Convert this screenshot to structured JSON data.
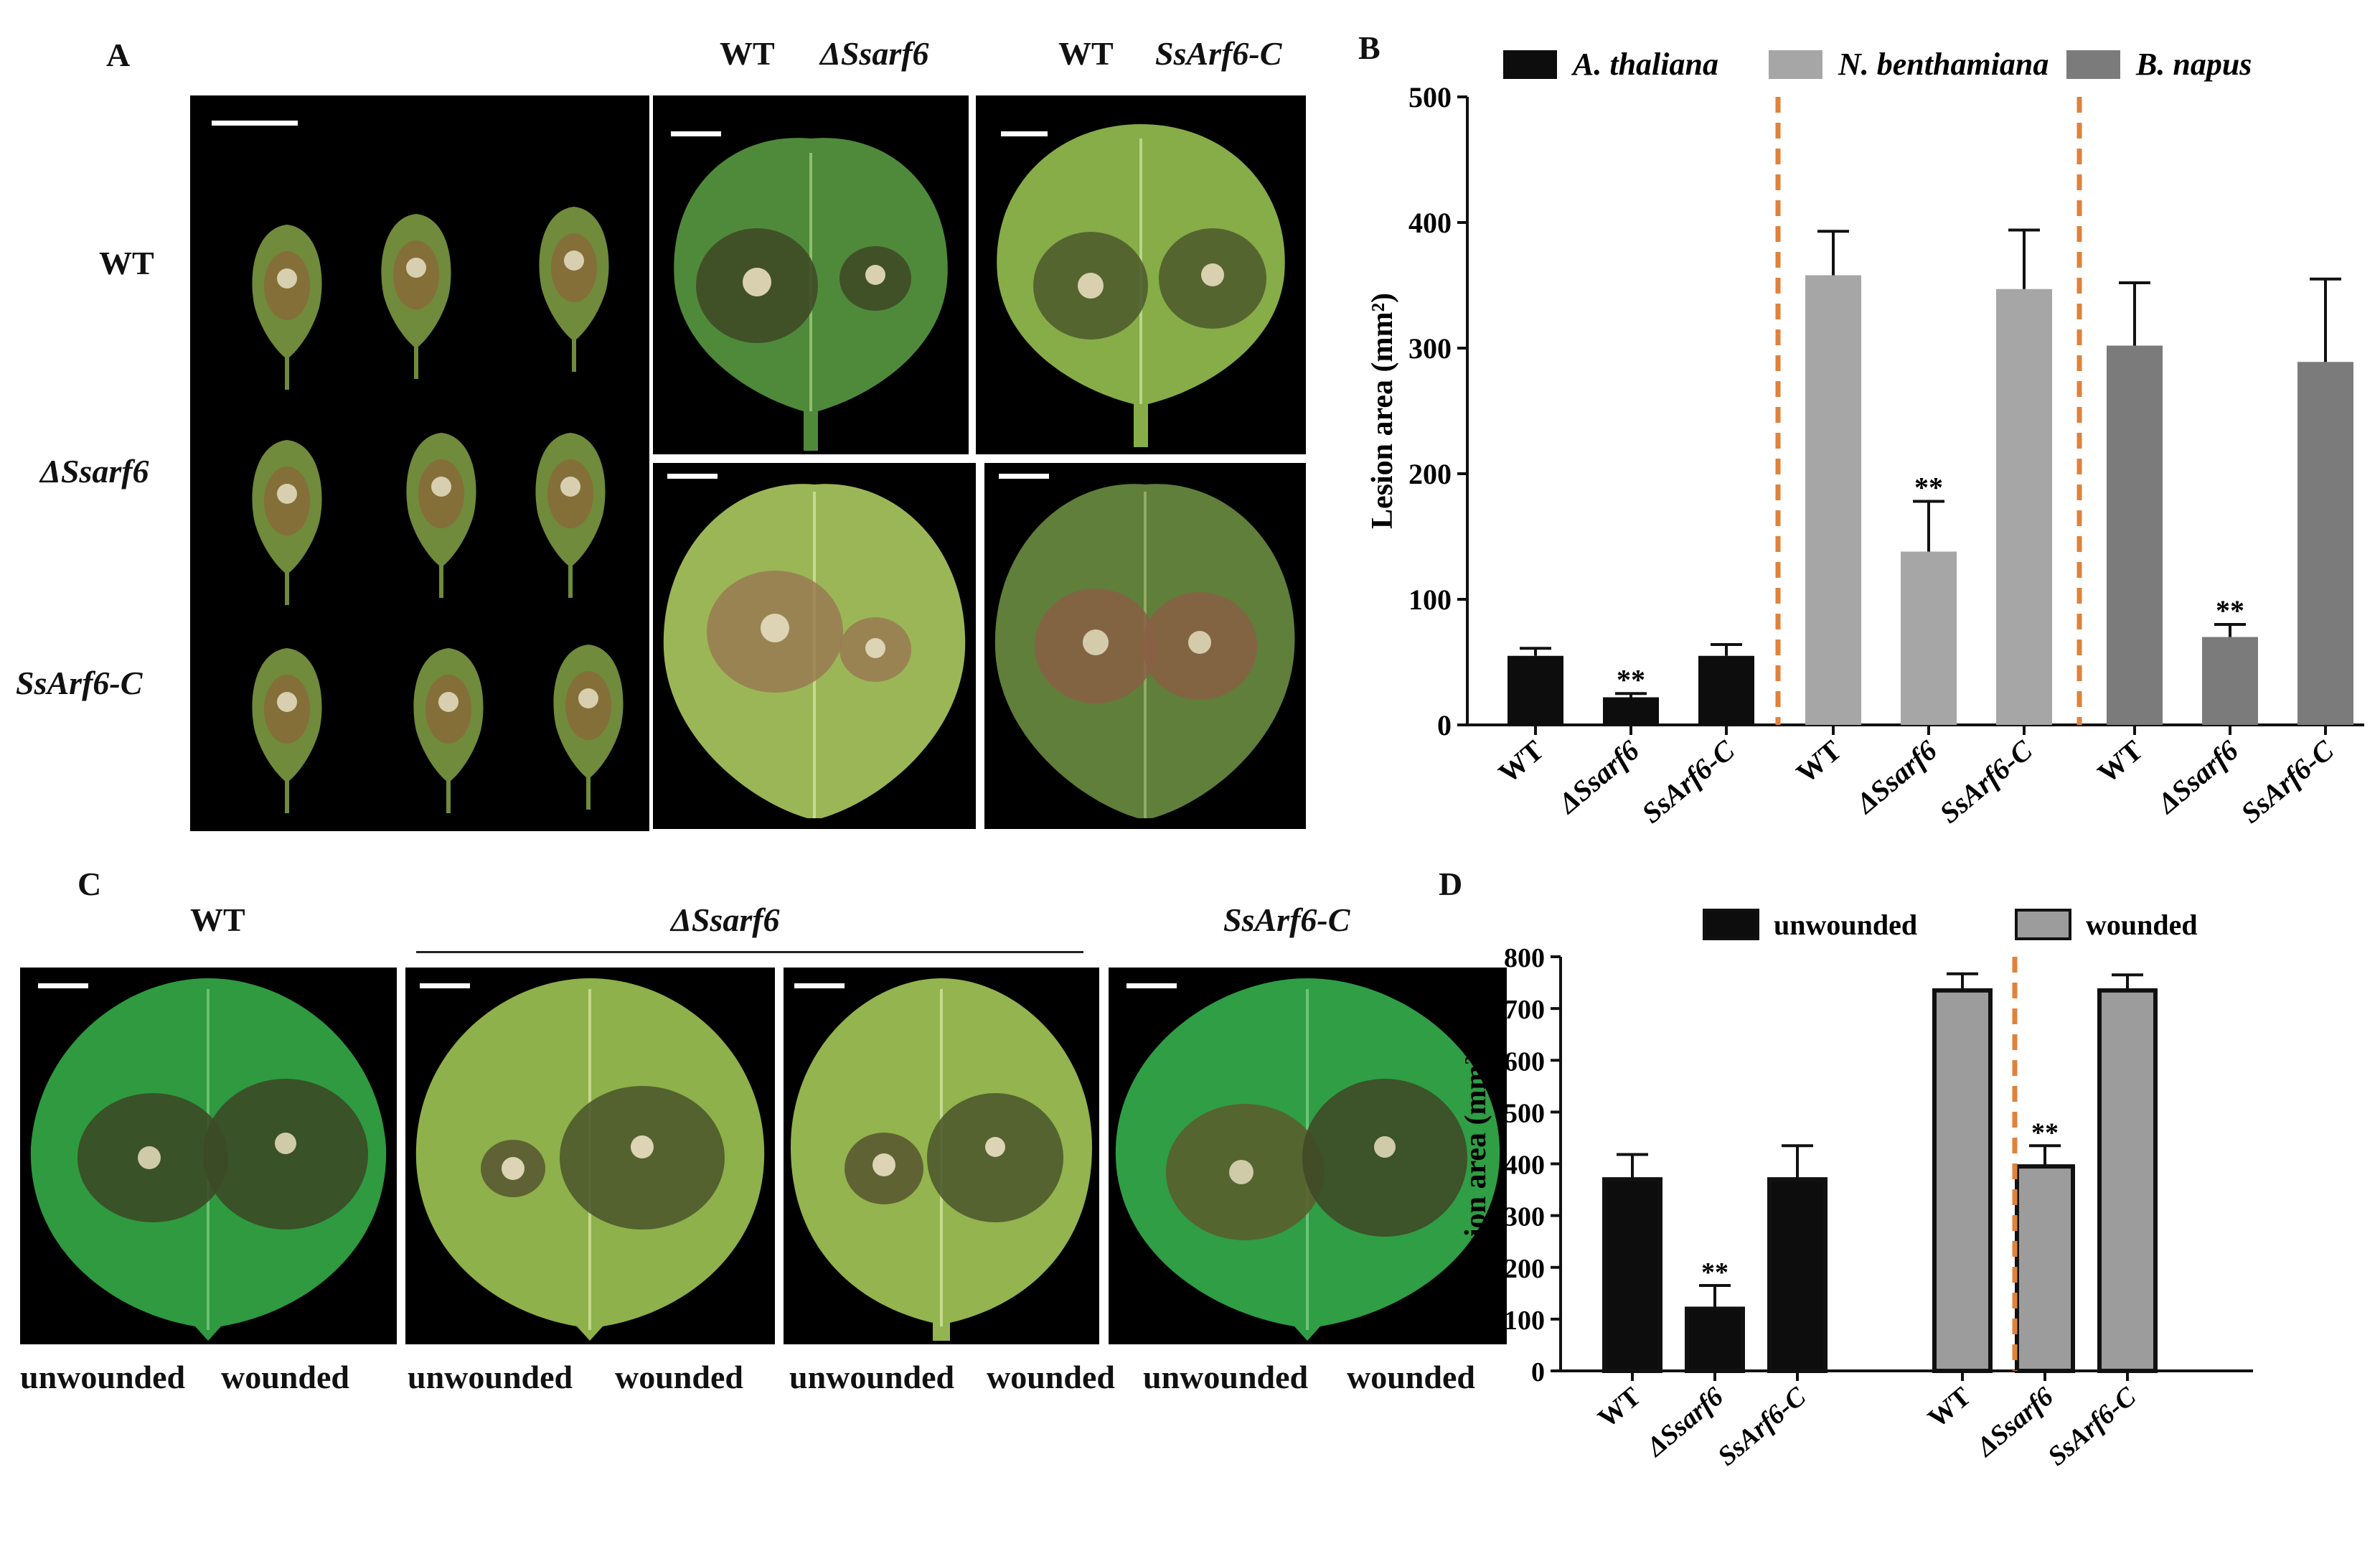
{
  "panels": {
    "a": {
      "letter": "A"
    },
    "b": {
      "letter": "B"
    },
    "c": {
      "letter": "C"
    },
    "d": {
      "letter": "D"
    }
  },
  "panel_a": {
    "row_labels": [
      "WT",
      "ΔSsarf6",
      "SsArf6-C"
    ],
    "col_labels": [
      "WT",
      "ΔSsarf6",
      "WT",
      "SsArf6-C"
    ]
  },
  "panel_c": {
    "top_labels": [
      "WT",
      "ΔSsarf6",
      "SsArf6-C"
    ],
    "bottom_labels": [
      "unwounded",
      "wounded",
      "unwounded",
      "wounded",
      "unwounded",
      "wounded",
      "unwounded",
      "wounded"
    ]
  },
  "colors": {
    "a_thaliana": "#0d0d0d",
    "n_benthamiana": "#a6a6a6",
    "b_napus": "#7b7b7b",
    "unwounded": "#0d0d0d",
    "wounded": "#9c9c9c",
    "divider": "#e0823a"
  },
  "chart_data": [
    {
      "id": "B",
      "type": "bar",
      "ylabel": "Lesion area (mm²)",
      "ylim": [
        0,
        500
      ],
      "yticks": [
        "0",
        "100",
        "200",
        "300",
        "400",
        "500"
      ],
      "legend_position": "top",
      "series": [
        {
          "name": "A. thaliana",
          "categories": [
            "WT",
            "ΔSsarf6",
            "SsArf6-C"
          ],
          "values": [
            55,
            22,
            55
          ],
          "errors": [
            6,
            3,
            9
          ],
          "annotations": [
            "",
            "**",
            ""
          ]
        },
        {
          "name": "N. benthamiana",
          "categories": [
            "WT",
            "ΔSsarf6",
            "SsArf6-C"
          ],
          "values": [
            358,
            138,
            347
          ],
          "errors": [
            35,
            40,
            47
          ],
          "annotations": [
            "",
            "**",
            ""
          ]
        },
        {
          "name": "B. napus",
          "categories": [
            "WT",
            "ΔSsarf6",
            "SsArf6-C"
          ],
          "values": [
            302,
            70,
            289
          ],
          "errors": [
            50,
            10,
            66
          ],
          "annotations": [
            "",
            "**",
            ""
          ]
        }
      ]
    },
    {
      "id": "D",
      "type": "bar",
      "ylabel": "Lesion area (mm²)",
      "ylim": [
        0,
        800
      ],
      "yticks": [
        "0",
        "100",
        "200",
        "300",
        "400",
        "500",
        "600",
        "700",
        "800"
      ],
      "legend_position": "top",
      "series": [
        {
          "name": "unwounded",
          "categories": [
            "WT",
            "ΔSsarf6",
            "SsArf6-C"
          ],
          "values": [
            370,
            120,
            370
          ],
          "errors": [
            48,
            45,
            65
          ],
          "annotations": [
            "",
            "**",
            ""
          ]
        },
        {
          "name": "wounded",
          "categories": [
            "WT",
            "ΔSsarf6",
            "SsArf6-C"
          ],
          "values": [
            735,
            395,
            735
          ],
          "errors": [
            32,
            40,
            30
          ],
          "annotations": [
            "",
            "**",
            ""
          ]
        }
      ]
    }
  ]
}
